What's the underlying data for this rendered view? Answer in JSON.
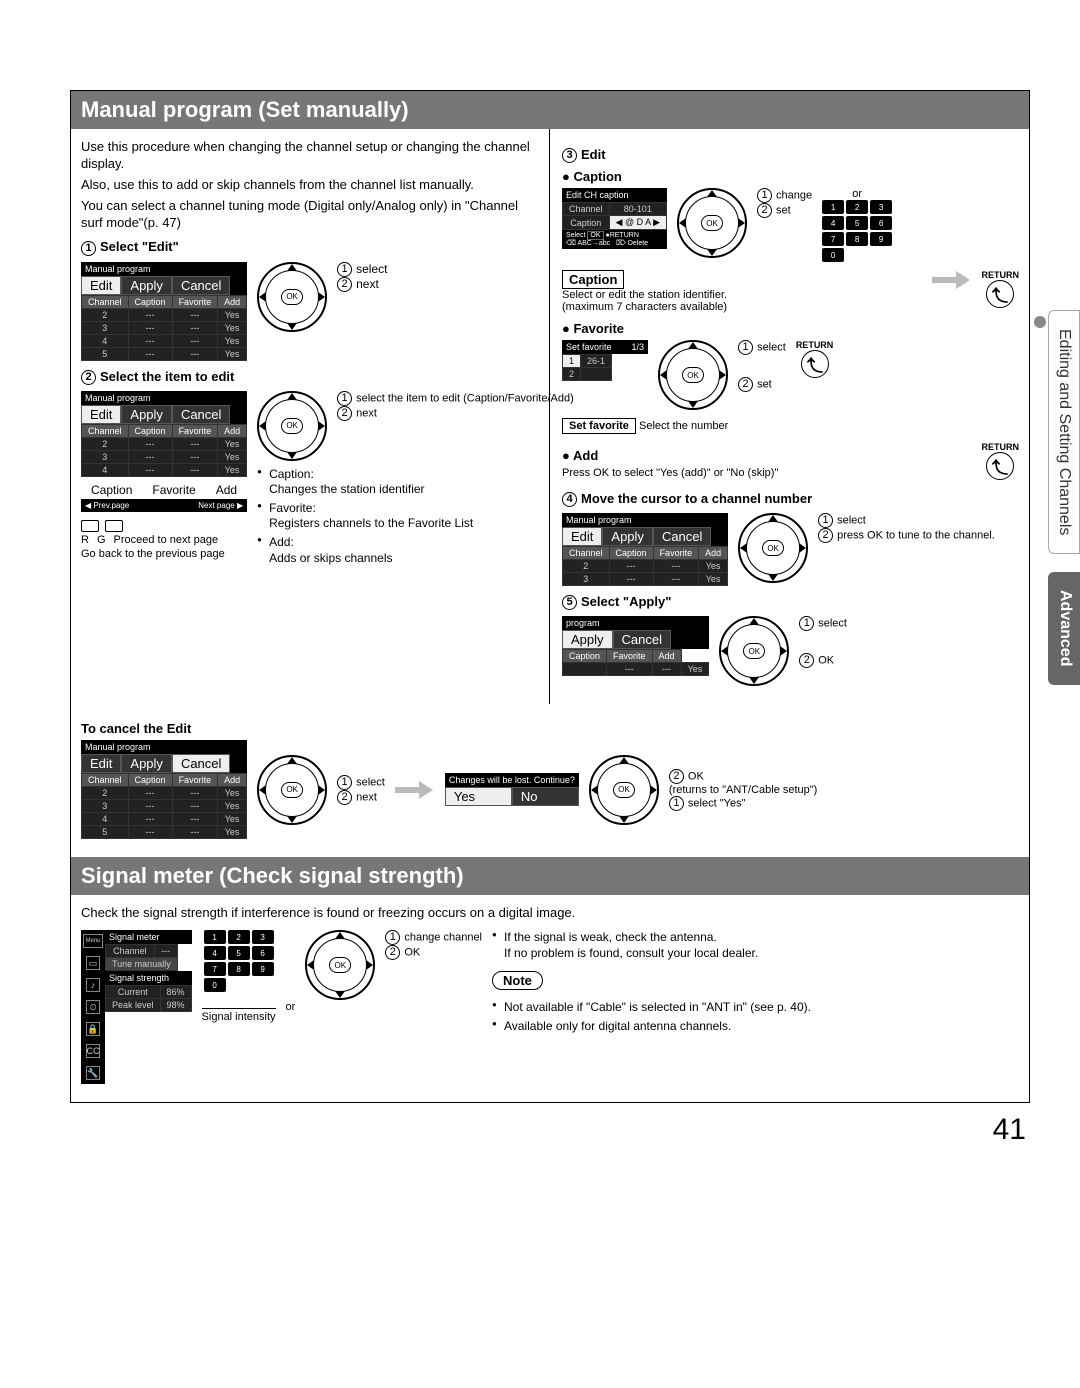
{
  "page_number": "41",
  "side_tabs": {
    "light": "Editing and Setting Channels",
    "dark": "Advanced"
  },
  "manual_program": {
    "header": "Manual program (Set manually)",
    "intro_p1": "Use this procedure when changing the channel setup or changing the channel display.",
    "intro_p2": "Also, use this to add or skip channels from the channel list manually.",
    "intro_p3": "You can select a channel tuning mode (Digital only/Analog only) in \"Channel surf mode\"(p. 47)",
    "step1_title": "Select \"Edit\"",
    "ui_title": "Manual program",
    "tabs": {
      "edit": "Edit",
      "apply": "Apply",
      "cancel": "Cancel"
    },
    "cols": {
      "channel": "Channel",
      "caption": "Caption",
      "favorite": "Favorite",
      "add": "Add"
    },
    "rows1": [
      [
        "2",
        "---",
        "---",
        "Yes"
      ],
      [
        "3",
        "---",
        "---",
        "Yes"
      ],
      [
        "4",
        "---",
        "---",
        "Yes"
      ],
      [
        "5",
        "---",
        "---",
        "Yes"
      ]
    ],
    "dpad_ok": "OK",
    "a_select": "select",
    "a_next": "next",
    "step2_title": "Select the item to edit",
    "rows2": [
      [
        "2",
        "---",
        "---",
        "Yes"
      ],
      [
        "3",
        "---",
        "---",
        "Yes"
      ],
      [
        "4",
        "---",
        "---",
        "Yes"
      ]
    ],
    "labels": {
      "favorite": "Favorite",
      "caption": "Caption",
      "add": "Add"
    },
    "rg": {
      "r": "R",
      "g": "G",
      "proceed": "Proceed to next page",
      "back": "Go back to the previous page"
    },
    "a2_select": "select the item to edit (Caption/Favorite/Add)",
    "a2_next": "next",
    "definitions": {
      "caption_h": "Caption:",
      "caption_b": "Changes the station identifier",
      "favorite_h": "Favorite:",
      "favorite_b": "Registers channels to the Favorite List",
      "add_h": "Add:",
      "add_b": "Adds or skips channels"
    },
    "cancel_heading": "To cancel the Edit",
    "step3_title": "Edit",
    "caption_label": "Caption",
    "edit_ch_title": "Edit CH caption",
    "edit_ch_channel": "Channel",
    "edit_ch_channel_v": "80-101",
    "edit_ch_caption": "Caption",
    "edit_ch_caption_v": "@ D A",
    "or": "or",
    "a_change": "change",
    "a_set": "set",
    "caption_box": "Caption",
    "caption_desc1": "Select or edit the station identifier.",
    "caption_desc2": "(maximum 7 characters available)",
    "return": "RETURN",
    "favorite_label": "Favorite",
    "set_fav_title": "Set favorite",
    "set_fav_count": "1/3",
    "set_fav_row": [
      "1",
      "26-1"
    ],
    "set_fav_box": "Set favorite",
    "set_fav_hint": "Select the number",
    "add_label": "Add",
    "add_desc": "Press OK to select \"Yes (add)\" or \"No (skip)\"",
    "step4_title": "Move the cursor to a channel number",
    "rows4": [
      [
        "2",
        "---",
        "---",
        "Yes"
      ],
      [
        "3",
        "---",
        "---",
        "Yes"
      ]
    ],
    "a4_select": "select",
    "a4_press": "press OK to tune to the channel.",
    "step5_title": "Select \"Apply\"",
    "program_title": "program",
    "rows5": [
      [
        "",
        "---",
        "---",
        "Yes"
      ]
    ],
    "a5_select": "select",
    "a5_ok": "OK",
    "dialog": {
      "title": "Changes will be lost. Continue?",
      "yes": "Yes",
      "no": "No"
    },
    "a6_ok": "OK",
    "a6_ret": "(returns to \"ANT/Cable setup\")",
    "a6_sel": "select \"Yes\""
  },
  "signal_meter": {
    "header": "Signal meter (Check signal strength)",
    "intro": "Check the signal strength if interference is found or freezing occurs on a digital image.",
    "menu_label": "Menu",
    "sm_title": "Signal  meter",
    "sm_channel": "Channel",
    "sm_channel_v": "---",
    "sm_tune": "Tune manually",
    "ss_title": "Signal  strength",
    "ss_current": "Current",
    "ss_current_v": "86%",
    "ss_peak": "Peak level",
    "ss_peak_v": "98%",
    "si_label": "Signal intensity",
    "or": "or",
    "a_change": "change channel",
    "a_ok": "OK",
    "note_b1": "If the signal is weak, check the antenna.",
    "note_b2": "If no problem is found, consult your local dealer.",
    "note_label": "Note",
    "note_n1": "Not available if \"Cable\" is selected in \"ANT in\" (see p. 40).",
    "note_n2": "Available only for digital antenna channels."
  },
  "numkeys": [
    "1",
    "2",
    "3",
    "4",
    "5",
    "6",
    "7",
    "8",
    "9",
    "0"
  ]
}
